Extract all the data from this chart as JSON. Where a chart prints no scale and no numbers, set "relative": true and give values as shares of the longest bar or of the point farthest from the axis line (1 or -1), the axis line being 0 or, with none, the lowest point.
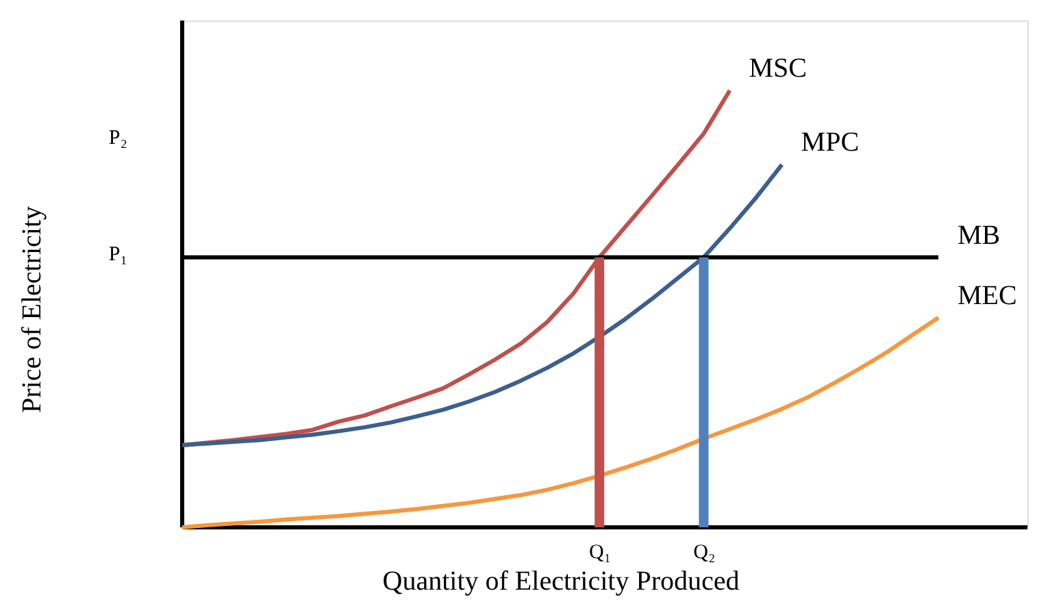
{
  "chart_data": {
    "type": "line",
    "relative": true,
    "xlabel": "Quantity of Electricity Produced",
    "ylabel": "Price of Electricity",
    "categories": [
      null,
      null,
      null,
      null,
      null,
      null,
      null,
      null,
      null,
      null,
      null,
      null,
      null,
      null,
      null,
      null,
      "Q₁",
      null,
      null,
      null,
      "Q₂",
      null,
      null,
      null,
      null,
      null,
      null,
      null,
      null,
      null
    ],
    "annotations": [
      "P₂",
      "P₁"
    ],
    "marker": "none",
    "line_style": "solid",
    "series": [
      {
        "name": "MSC",
        "color": "#c0504d",
        "values": [
          0.188,
          0.194,
          0.2,
          0.207,
          0.214,
          0.223,
          0.242,
          0.256,
          0.277,
          0.297,
          0.318,
          0.35,
          0.384,
          0.421,
          0.47,
          0.535,
          0.618,
          0.688,
          0.758,
          0.829,
          0.901,
          1,
          null,
          null,
          null,
          null,
          null,
          null,
          null,
          null
        ]
      },
      {
        "name": "MPC",
        "color": "#3c5f8f",
        "values": [
          0.188,
          0.192,
          0.196,
          0.2,
          0.206,
          0.212,
          0.22,
          0.229,
          0.24,
          0.254,
          0.269,
          0.288,
          0.31,
          0.336,
          0.365,
          0.398,
          0.436,
          0.477,
          0.522,
          0.57,
          0.618,
          0.684,
          0.754,
          0.83,
          null,
          null,
          null,
          null,
          null,
          null
        ]
      },
      {
        "name": "MB",
        "color": "#000000",
        "values": [
          0.618,
          0.618,
          0.618,
          0.618,
          0.618,
          0.618,
          0.618,
          0.618,
          0.618,
          0.618,
          0.618,
          0.618,
          0.618,
          0.618,
          0.618,
          0.618,
          0.618,
          0.618,
          0.618,
          0.618,
          0.618,
          0.618,
          0.618,
          0.618,
          0.618,
          0.618,
          0.618,
          0.618,
          0.618,
          0.618
        ]
      },
      {
        "name": "MEC",
        "color": "#f7973f",
        "values": [
          0,
          0.005,
          0.009,
          0.013,
          0.018,
          0.022,
          0.026,
          0.031,
          0.036,
          0.042,
          0.049,
          0.056,
          0.065,
          0.074,
          0.086,
          0.101,
          0.118,
          0.137,
          0.157,
          0.179,
          0.203,
          0.225,
          0.247,
          0.271,
          0.298,
          0.33,
          0.364,
          0.4,
          0.44,
          0.48
        ]
      },
      {
        "type": "bar",
        "color": "#c0504d",
        "values": [
          null,
          null,
          null,
          null,
          null,
          null,
          null,
          null,
          null,
          null,
          null,
          null,
          null,
          null,
          null,
          null,
          0.618,
          null,
          null,
          null,
          null,
          null,
          null,
          null,
          null,
          null,
          null,
          null,
          null,
          null
        ]
      },
      {
        "type": "bar",
        "color": "#4f81bd",
        "values": [
          null,
          null,
          null,
          null,
          null,
          null,
          null,
          null,
          null,
          null,
          null,
          null,
          null,
          null,
          null,
          null,
          null,
          null,
          null,
          null,
          0.618,
          null,
          null,
          null,
          null,
          null,
          null,
          null,
          null,
          null
        ]
      }
    ]
  }
}
